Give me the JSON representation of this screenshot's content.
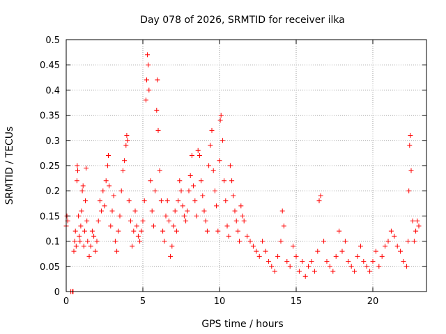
{
  "chart_data": {
    "type": "scatter",
    "title": "Day 078 of 2026, SRMTID for receiver ilka",
    "xlabel": "GPS time / hours",
    "ylabel": "SRMTID / TECUs",
    "xlim": [
      0,
      23.5
    ],
    "ylim": [
      0,
      0.5
    ],
    "grid": true,
    "marker": "+",
    "color": "#ff0000",
    "x_ticks": [
      0,
      5,
      10,
      15,
      20
    ],
    "x_tick_labels": [
      "0",
      "5",
      "10",
      "15",
      "20"
    ],
    "y_ticks": [
      0,
      0.05,
      0.1,
      0.15,
      0.2,
      0.25,
      0.3,
      0.35,
      0.4,
      0.45,
      0.5
    ],
    "y_tick_labels": [
      "0",
      "0.05",
      "0.1",
      "0.15",
      "0.2",
      "0.25",
      "0.3",
      "0.35",
      "0.4",
      "0.45",
      "0.5"
    ],
    "series": [
      {
        "name": "SRMTID",
        "points": [
          [
            0.0,
            0.13
          ],
          [
            0.05,
            0.15
          ],
          [
            0.1,
            0.14
          ],
          [
            0.3,
            0.0
          ],
          [
            0.4,
            0.0
          ],
          [
            0.45,
            0.0
          ],
          [
            0.5,
            0.08
          ],
          [
            0.55,
            0.1
          ],
          [
            0.6,
            0.12
          ],
          [
            0.65,
            0.09
          ],
          [
            0.7,
            0.22
          ],
          [
            0.72,
            0.25
          ],
          [
            0.75,
            0.24
          ],
          [
            0.8,
            0.15
          ],
          [
            0.85,
            0.11
          ],
          [
            0.9,
            0.1
          ],
          [
            0.95,
            0.13
          ],
          [
            1.0,
            0.16
          ],
          [
            1.05,
            0.2
          ],
          [
            1.1,
            0.21
          ],
          [
            1.15,
            0.09
          ],
          [
            1.2,
            0.12
          ],
          [
            1.25,
            0.18
          ],
          [
            1.3,
            0.245
          ],
          [
            1.35,
            0.14
          ],
          [
            1.4,
            0.1
          ],
          [
            1.5,
            0.07
          ],
          [
            1.6,
            0.09
          ],
          [
            1.7,
            0.12
          ],
          [
            1.8,
            0.11
          ],
          [
            1.9,
            0.08
          ],
          [
            2.0,
            0.1
          ],
          [
            2.1,
            0.14
          ],
          [
            2.2,
            0.18
          ],
          [
            2.3,
            0.16
          ],
          [
            2.4,
            0.2
          ],
          [
            2.5,
            0.17
          ],
          [
            2.6,
            0.22
          ],
          [
            2.7,
            0.25
          ],
          [
            2.75,
            0.27
          ],
          [
            2.8,
            0.21
          ],
          [
            2.9,
            0.13
          ],
          [
            3.0,
            0.16
          ],
          [
            3.1,
            0.19
          ],
          [
            3.2,
            0.1
          ],
          [
            3.3,
            0.08
          ],
          [
            3.4,
            0.12
          ],
          [
            3.5,
            0.15
          ],
          [
            3.6,
            0.2
          ],
          [
            3.7,
            0.24
          ],
          [
            3.8,
            0.26
          ],
          [
            3.9,
            0.29
          ],
          [
            3.95,
            0.31
          ],
          [
            4.0,
            0.3
          ],
          [
            4.1,
            0.18
          ],
          [
            4.2,
            0.14
          ],
          [
            4.3,
            0.09
          ],
          [
            4.4,
            0.12
          ],
          [
            4.5,
            0.16
          ],
          [
            4.6,
            0.13
          ],
          [
            4.7,
            0.11
          ],
          [
            4.8,
            0.1
          ],
          [
            4.9,
            0.12
          ],
          [
            5.0,
            0.14
          ],
          [
            5.1,
            0.18
          ],
          [
            5.2,
            0.38
          ],
          [
            5.25,
            0.42
          ],
          [
            5.3,
            0.47
          ],
          [
            5.35,
            0.45
          ],
          [
            5.4,
            0.4
          ],
          [
            5.5,
            0.22
          ],
          [
            5.6,
            0.16
          ],
          [
            5.7,
            0.13
          ],
          [
            5.8,
            0.2
          ],
          [
            5.9,
            0.36
          ],
          [
            5.95,
            0.42
          ],
          [
            6.0,
            0.32
          ],
          [
            6.1,
            0.24
          ],
          [
            6.2,
            0.18
          ],
          [
            6.3,
            0.12
          ],
          [
            6.4,
            0.1
          ],
          [
            6.5,
            0.15
          ],
          [
            6.6,
            0.18
          ],
          [
            6.7,
            0.14
          ],
          [
            6.8,
            0.07
          ],
          [
            6.9,
            0.09
          ],
          [
            7.0,
            0.13
          ],
          [
            7.1,
            0.16
          ],
          [
            7.2,
            0.12
          ],
          [
            7.3,
            0.18
          ],
          [
            7.4,
            0.22
          ],
          [
            7.5,
            0.2
          ],
          [
            7.6,
            0.17
          ],
          [
            7.7,
            0.15
          ],
          [
            7.8,
            0.14
          ],
          [
            7.9,
            0.16
          ],
          [
            8.0,
            0.2
          ],
          [
            8.1,
            0.23
          ],
          [
            8.2,
            0.27
          ],
          [
            8.3,
            0.21
          ],
          [
            8.4,
            0.18
          ],
          [
            8.5,
            0.15
          ],
          [
            8.6,
            0.28
          ],
          [
            8.7,
            0.27
          ],
          [
            8.8,
            0.22
          ],
          [
            8.9,
            0.19
          ],
          [
            9.0,
            0.16
          ],
          [
            9.1,
            0.14
          ],
          [
            9.2,
            0.12
          ],
          [
            9.3,
            0.25
          ],
          [
            9.4,
            0.29
          ],
          [
            9.5,
            0.32
          ],
          [
            9.6,
            0.24
          ],
          [
            9.7,
            0.2
          ],
          [
            9.8,
            0.17
          ],
          [
            9.9,
            0.12
          ],
          [
            10.0,
            0.26
          ],
          [
            10.05,
            0.34
          ],
          [
            10.1,
            0.35
          ],
          [
            10.2,
            0.3
          ],
          [
            10.3,
            0.22
          ],
          [
            10.4,
            0.18
          ],
          [
            10.5,
            0.13
          ],
          [
            10.6,
            0.11
          ],
          [
            10.7,
            0.25
          ],
          [
            10.8,
            0.22
          ],
          [
            10.9,
            0.19
          ],
          [
            11.0,
            0.16
          ],
          [
            11.1,
            0.14
          ],
          [
            11.2,
            0.12
          ],
          [
            11.3,
            0.1
          ],
          [
            11.4,
            0.17
          ],
          [
            11.5,
            0.15
          ],
          [
            11.6,
            0.14
          ],
          [
            11.8,
            0.11
          ],
          [
            12.0,
            0.1
          ],
          [
            12.2,
            0.09
          ],
          [
            12.4,
            0.08
          ],
          [
            12.6,
            0.07
          ],
          [
            12.8,
            0.1
          ],
          [
            13.0,
            0.08
          ],
          [
            13.2,
            0.06
          ],
          [
            13.4,
            0.05
          ],
          [
            13.6,
            0.04
          ],
          [
            13.8,
            0.07
          ],
          [
            14.0,
            0.1
          ],
          [
            14.1,
            0.16
          ],
          [
            14.2,
            0.13
          ],
          [
            14.4,
            0.06
          ],
          [
            14.6,
            0.05
          ],
          [
            14.8,
            0.09
          ],
          [
            15.0,
            0.07
          ],
          [
            15.2,
            0.04
          ],
          [
            15.4,
            0.06
          ],
          [
            15.6,
            0.03
          ],
          [
            15.8,
            0.05
          ],
          [
            16.0,
            0.06
          ],
          [
            16.2,
            0.04
          ],
          [
            16.4,
            0.08
          ],
          [
            16.5,
            0.18
          ],
          [
            16.6,
            0.19
          ],
          [
            16.8,
            0.1
          ],
          [
            17.0,
            0.06
          ],
          [
            17.2,
            0.05
          ],
          [
            17.4,
            0.04
          ],
          [
            17.6,
            0.07
          ],
          [
            17.8,
            0.12
          ],
          [
            18.0,
            0.08
          ],
          [
            18.2,
            0.1
          ],
          [
            18.4,
            0.06
          ],
          [
            18.6,
            0.05
          ],
          [
            18.8,
            0.04
          ],
          [
            19.0,
            0.07
          ],
          [
            19.2,
            0.09
          ],
          [
            19.4,
            0.06
          ],
          [
            19.6,
            0.05
          ],
          [
            19.8,
            0.04
          ],
          [
            20.0,
            0.06
          ],
          [
            20.2,
            0.08
          ],
          [
            20.4,
            0.05
          ],
          [
            20.6,
            0.07
          ],
          [
            20.8,
            0.09
          ],
          [
            21.0,
            0.1
          ],
          [
            21.2,
            0.12
          ],
          [
            21.4,
            0.11
          ],
          [
            21.6,
            0.09
          ],
          [
            21.8,
            0.08
          ],
          [
            22.0,
            0.06
          ],
          [
            22.2,
            0.05
          ],
          [
            22.3,
            0.1
          ],
          [
            22.35,
            0.2
          ],
          [
            22.4,
            0.29
          ],
          [
            22.45,
            0.31
          ],
          [
            22.5,
            0.24
          ],
          [
            22.6,
            0.14
          ],
          [
            22.7,
            0.1
          ],
          [
            22.8,
            0.12
          ],
          [
            22.9,
            0.14
          ],
          [
            23.0,
            0.13
          ]
        ]
      }
    ]
  }
}
